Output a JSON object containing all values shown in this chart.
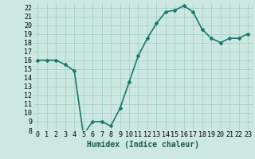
{
  "x": [
    0,
    1,
    2,
    3,
    4,
    5,
    6,
    7,
    8,
    9,
    10,
    11,
    12,
    13,
    14,
    15,
    16,
    17,
    18,
    19,
    20,
    21,
    22,
    23
  ],
  "y": [
    16,
    16,
    16,
    15.5,
    14.8,
    7.5,
    9,
    9,
    8.5,
    10.5,
    13.5,
    16.5,
    18.5,
    20.2,
    21.5,
    21.7,
    22.2,
    21.5,
    19.5,
    18.5,
    18,
    18.5,
    18.5,
    19
  ],
  "line_color": "#1a7a6e",
  "marker": "D",
  "marker_size": 2,
  "bg_color": "#cce8e0",
  "grid_color": "#9fcec4",
  "xlabel": "Humidex (Indice chaleur)",
  "xlabel_fontsize": 7,
  "ylim": [
    8,
    22.5
  ],
  "xlim": [
    -0.5,
    23.5
  ],
  "yticks": [
    8,
    9,
    10,
    11,
    12,
    13,
    14,
    15,
    16,
    17,
    18,
    19,
    20,
    21,
    22
  ],
  "xticks": [
    0,
    1,
    2,
    3,
    4,
    5,
    6,
    7,
    8,
    9,
    10,
    11,
    12,
    13,
    14,
    15,
    16,
    17,
    18,
    19,
    20,
    21,
    22,
    23
  ],
  "tick_fontsize": 6,
  "linewidth": 1.2
}
